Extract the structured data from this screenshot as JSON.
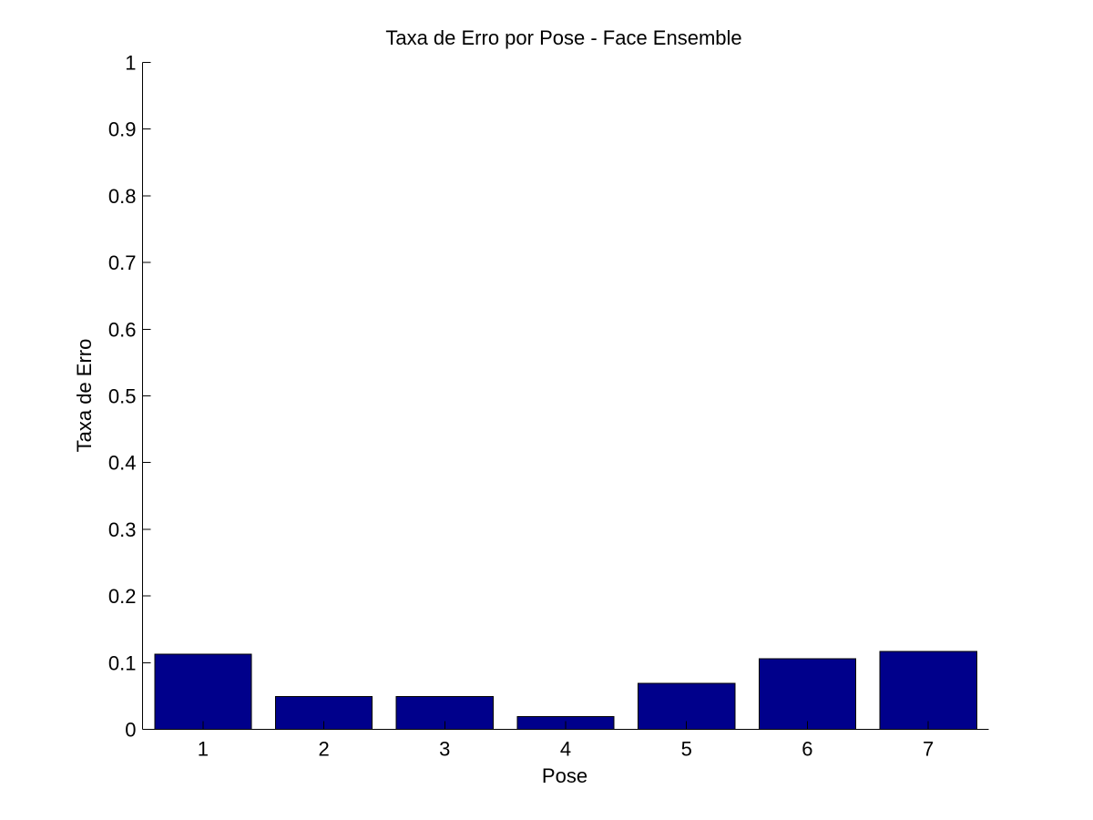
{
  "chart_data": {
    "type": "bar",
    "title": "Taxa de Erro por Pose - Face Ensemble",
    "xlabel": "Pose",
    "ylabel": "Taxa de Erro",
    "categories": [
      "1",
      "2",
      "3",
      "4",
      "5",
      "6",
      "7"
    ],
    "values": [
      0.113,
      0.049,
      0.049,
      0.019,
      0.069,
      0.106,
      0.117
    ],
    "ylim": [
      0,
      1
    ],
    "yticks": [
      0,
      0.1,
      0.2,
      0.3,
      0.4,
      0.5,
      0.6,
      0.7,
      0.8,
      0.9,
      1
    ],
    "ytick_labels": [
      "0",
      "0.1",
      "0.2",
      "0.3",
      "0.4",
      "0.5",
      "0.6",
      "0.7",
      "0.8",
      "0.9",
      "1"
    ],
    "grid": false,
    "bar_color": "#00008B"
  }
}
